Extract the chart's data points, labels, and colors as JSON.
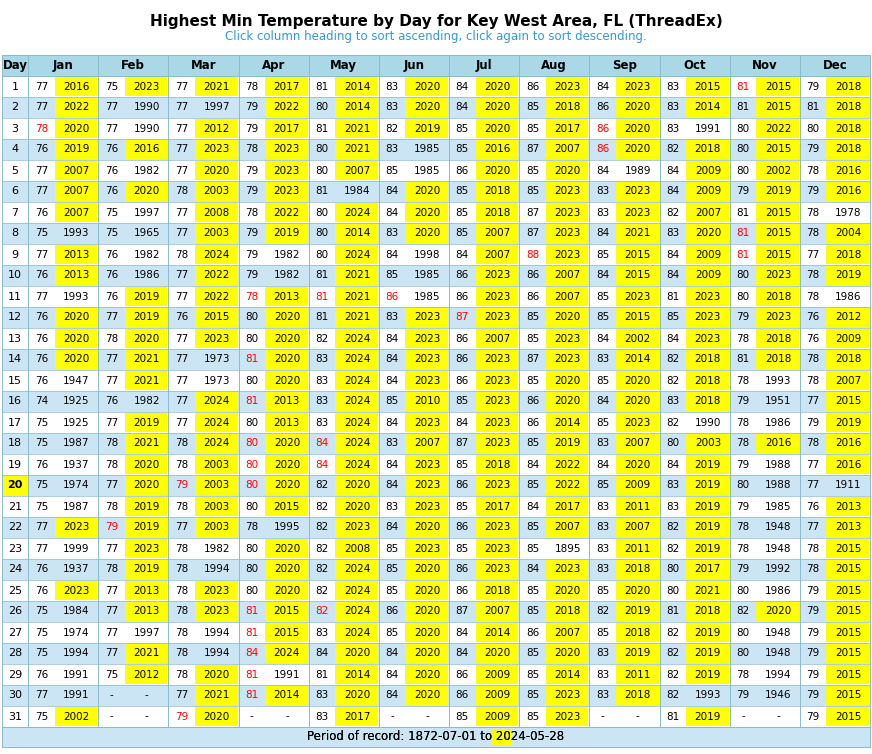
{
  "title": "Highest Min Temperature by Day for Key West Area, FL (ThreadEx)",
  "subtitle": "Click column heading to sort ascending, click again to sort descending.",
  "footer": "Period of record: 1872-07-01 to 2024-05-28",
  "col_headers": [
    "Day",
    "Jan",
    "Feb",
    "Mar",
    "Apr",
    "May",
    "Jun",
    "Jul",
    "Aug",
    "Sep",
    "Oct",
    "Nov",
    "Dec"
  ],
  "data": [
    [
      1,
      77,
      "2016",
      75,
      "2023",
      77,
      "2021",
      78,
      "2017",
      81,
      "2014",
      83,
      "2020",
      84,
      "2020",
      86,
      "2023",
      84,
      "2023",
      83,
      "2015",
      81,
      "2015",
      79,
      "2018"
    ],
    [
      2,
      77,
      "2022",
      77,
      "1990",
      77,
      "1997",
      79,
      "2022",
      80,
      "2014",
      83,
      "2020",
      84,
      "2020",
      85,
      "2018",
      86,
      "2020",
      83,
      "2014",
      81,
      "2015",
      81,
      "2018"
    ],
    [
      3,
      78,
      "2020",
      77,
      "1990",
      77,
      "2012",
      79,
      "2017",
      81,
      "2021",
      82,
      "2019",
      85,
      "2020",
      85,
      "2017",
      86,
      "2020",
      83,
      "1991",
      80,
      "2022",
      80,
      "2018"
    ],
    [
      4,
      76,
      "2019",
      76,
      "2016",
      77,
      "2023",
      78,
      "2023",
      80,
      "2021",
      83,
      "1985",
      85,
      "2016",
      87,
      "2007",
      86,
      "2020",
      82,
      "2018",
      80,
      "2015",
      79,
      "2018"
    ],
    [
      5,
      77,
      "2007",
      76,
      "1982",
      77,
      "2020",
      79,
      "2023",
      80,
      "2007",
      85,
      "1985",
      86,
      "2020",
      85,
      "2020",
      84,
      "1989",
      84,
      "2009",
      80,
      "2002",
      78,
      "2016"
    ],
    [
      6,
      77,
      "2007",
      76,
      "2020",
      78,
      "2003",
      79,
      "2023",
      81,
      "1984",
      84,
      "2020",
      85,
      "2018",
      85,
      "2023",
      83,
      "2023",
      84,
      "2009",
      79,
      "2019",
      79,
      "2016"
    ],
    [
      7,
      76,
      "2007",
      75,
      "1997",
      77,
      "2008",
      78,
      "2022",
      80,
      "2024",
      84,
      "2020",
      85,
      "2018",
      87,
      "2023",
      83,
      "2023",
      82,
      "2007",
      81,
      "2015",
      78,
      "1978"
    ],
    [
      8,
      75,
      "1993",
      75,
      "1965",
      77,
      "2003",
      79,
      "2019",
      80,
      "2014",
      83,
      "2020",
      85,
      "2007",
      87,
      "2023",
      84,
      "2021",
      83,
      "2020",
      81,
      "2015",
      78,
      "2004"
    ],
    [
      9,
      77,
      "2013",
      76,
      "1982",
      78,
      "2024",
      79,
      "1982",
      80,
      "2024",
      84,
      "1998",
      84,
      "2007",
      88,
      "2023",
      85,
      "2015",
      84,
      "2009",
      81,
      "2015",
      77,
      "2018"
    ],
    [
      10,
      76,
      "2013",
      76,
      "1986",
      77,
      "2022",
      79,
      "1982",
      81,
      "2021",
      85,
      "1985",
      86,
      "2023",
      86,
      "2007",
      84,
      "2015",
      84,
      "2009",
      80,
      "2023",
      78,
      "2019"
    ],
    [
      11,
      77,
      "1993",
      76,
      "2019",
      77,
      "2022",
      78,
      "2013",
      81,
      "2021",
      86,
      "1985",
      86,
      "2023",
      86,
      "2007",
      85,
      "2023",
      81,
      "2023",
      80,
      "2018",
      78,
      "1986"
    ],
    [
      12,
      76,
      "2020",
      77,
      "2019",
      76,
      "2015",
      80,
      "2020",
      81,
      "2021",
      83,
      "2023",
      87,
      "2023",
      85,
      "2020",
      85,
      "2015",
      85,
      "2023",
      79,
      "2023",
      76,
      "2012"
    ],
    [
      13,
      76,
      "2020",
      78,
      "2020",
      77,
      "2023",
      80,
      "2020",
      82,
      "2024",
      84,
      "2023",
      86,
      "2007",
      85,
      "2023",
      84,
      "2002",
      84,
      "2023",
      78,
      "2018",
      76,
      "2009"
    ],
    [
      14,
      76,
      "2020",
      77,
      "2021",
      77,
      "1973",
      81,
      "2020",
      83,
      "2024",
      84,
      "2023",
      86,
      "2023",
      87,
      "2023",
      83,
      "2014",
      82,
      "2018",
      81,
      "2018",
      78,
      "2018"
    ],
    [
      15,
      76,
      "1947",
      77,
      "2021",
      77,
      "1973",
      80,
      "2020",
      83,
      "2024",
      84,
      "2023",
      86,
      "2023",
      85,
      "2020",
      85,
      "2020",
      82,
      "2018",
      78,
      "1993",
      78,
      "2007"
    ],
    [
      16,
      74,
      "1925",
      76,
      "1982",
      77,
      "2024",
      81,
      "2013",
      83,
      "2024",
      85,
      "2010",
      85,
      "2023",
      86,
      "2020",
      84,
      "2020",
      83,
      "2018",
      79,
      "1951",
      77,
      "2015"
    ],
    [
      17,
      75,
      "1925",
      77,
      "2019",
      77,
      "2024",
      80,
      "2013",
      83,
      "2024",
      84,
      "2023",
      84,
      "2023",
      86,
      "2014",
      85,
      "2023",
      82,
      "1990",
      78,
      "1986",
      79,
      "2019"
    ],
    [
      18,
      75,
      "1987",
      78,
      "2021",
      78,
      "2024",
      80,
      "2020",
      84,
      "2024",
      83,
      "2007",
      87,
      "2023",
      85,
      "2019",
      83,
      "2007",
      80,
      "2003",
      78,
      "2016",
      78,
      "2016"
    ],
    [
      19,
      76,
      "1937",
      78,
      "2020",
      78,
      "2003",
      80,
      "2020",
      84,
      "2024",
      84,
      "2023",
      85,
      "2018",
      84,
      "2022",
      84,
      "2020",
      84,
      "2019",
      79,
      "1988",
      77,
      "2016"
    ],
    [
      20,
      75,
      "1974",
      77,
      "2020",
      79,
      "2003",
      80,
      "2020",
      82,
      "2020",
      84,
      "2023",
      86,
      "2023",
      85,
      "2022",
      85,
      "2009",
      83,
      "2019",
      80,
      "1988",
      77,
      "1911"
    ],
    [
      21,
      75,
      "1987",
      78,
      "2019",
      78,
      "2003",
      80,
      "2015",
      82,
      "2020",
      83,
      "2023",
      85,
      "2017",
      84,
      "2017",
      83,
      "2011",
      83,
      "2019",
      79,
      "1985",
      76,
      "2013"
    ],
    [
      22,
      77,
      "2023",
      79,
      "2019",
      77,
      "2003",
      78,
      "1995",
      82,
      "2023",
      84,
      "2020",
      86,
      "2023",
      85,
      "2007",
      83,
      "2007",
      82,
      "2019",
      78,
      "1948",
      77,
      "2013"
    ],
    [
      23,
      77,
      "1999",
      77,
      "2023",
      78,
      "1982",
      80,
      "2020",
      82,
      "2008",
      85,
      "2023",
      85,
      "2023",
      85,
      "1895",
      83,
      "2011",
      82,
      "2019",
      78,
      "1948",
      78,
      "2015"
    ],
    [
      24,
      76,
      "1937",
      78,
      "2019",
      78,
      "1994",
      80,
      "2020",
      82,
      "2024",
      85,
      "2020",
      86,
      "2023",
      84,
      "2023",
      83,
      "2018",
      80,
      "2017",
      79,
      "1992",
      78,
      "2015"
    ],
    [
      25,
      76,
      "2023",
      77,
      "2013",
      78,
      "2023",
      80,
      "2020",
      82,
      "2024",
      85,
      "2020",
      86,
      "2018",
      85,
      "2020",
      85,
      "2020",
      80,
      "2021",
      80,
      "1986",
      79,
      "2015"
    ],
    [
      26,
      75,
      "1984",
      77,
      "2013",
      78,
      "2023",
      81,
      "2015",
      82,
      "2024",
      86,
      "2020",
      87,
      "2007",
      85,
      "2018",
      82,
      "2019",
      81,
      "2018",
      82,
      "2020",
      79,
      "2015"
    ],
    [
      27,
      75,
      "1974",
      77,
      "1997",
      78,
      "1994",
      81,
      "2015",
      83,
      "2024",
      85,
      "2020",
      84,
      "2014",
      86,
      "2007",
      85,
      "2018",
      82,
      "2019",
      80,
      "1948",
      79,
      "2015"
    ],
    [
      28,
      75,
      "1994",
      77,
      "2021",
      78,
      "1994",
      84,
      "2024",
      84,
      "2020",
      84,
      "2020",
      84,
      "2020",
      85,
      "2020",
      83,
      "2019",
      82,
      "2019",
      80,
      "1948",
      79,
      "2015"
    ],
    [
      29,
      76,
      "1991",
      75,
      "2012",
      78,
      "2020",
      81,
      "1991",
      81,
      "2014",
      84,
      "2020",
      86,
      "2009",
      85,
      "2014",
      83,
      "2011",
      82,
      "2019",
      78,
      "1994",
      79,
      "2015"
    ],
    [
      30,
      77,
      "1991",
      null,
      null,
      77,
      "2021",
      81,
      "2014",
      83,
      "2020",
      84,
      "2020",
      86,
      "2009",
      85,
      "2023",
      83,
      "2018",
      82,
      "1993",
      79,
      "1946",
      79,
      "2015"
    ],
    [
      31,
      75,
      "2002",
      null,
      null,
      79,
      "2020",
      null,
      null,
      83,
      "2017",
      null,
      null,
      85,
      "2009",
      85,
      "2023",
      null,
      null,
      81,
      "2019",
      null,
      null,
      79,
      "2015"
    ]
  ],
  "yellow_highlight": "#ffff00",
  "red_text_color": "#ff0000",
  "header_bg": "#aad8e6",
  "row_bg_even": "#ffffff",
  "row_bg_odd": "#cce5f5",
  "border_color": "#88bbcc",
  "title_color": "#000000",
  "subtitle_color": "#3399cc",
  "footer_bg": "#cce5f5",
  "red_entries": {
    "0": [
      3
    ],
    "1": [
      22
    ],
    "2": [
      20,
      31
    ],
    "3": [
      11,
      14,
      16,
      18,
      19,
      20,
      26,
      27,
      28,
      29,
      30
    ],
    "4": [
      11,
      18,
      19,
      26
    ],
    "5": [
      11
    ],
    "6": [
      12
    ],
    "7": [
      9
    ],
    "8": [
      3,
      4
    ],
    "9": [],
    "10": [
      1,
      8,
      9
    ],
    "11": []
  }
}
